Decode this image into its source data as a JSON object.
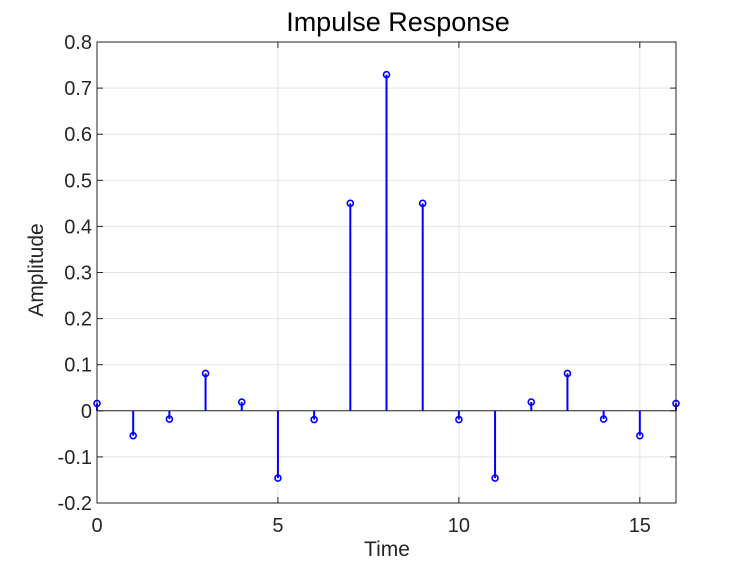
{
  "chart_data": {
    "type": "stem",
    "title": "Impulse Response",
    "xlabel": "Time",
    "ylabel": "Amplitude",
    "xlim": [
      0,
      16
    ],
    "ylim": [
      -0.2,
      0.8
    ],
    "x_ticks": [
      0,
      5,
      10,
      15
    ],
    "y_ticks": [
      -0.2,
      -0.1,
      0,
      0.1,
      0.2,
      0.3,
      0.4,
      0.5,
      0.6,
      0.7,
      0.8
    ],
    "x_tick_labels": [
      "0",
      "5",
      "10",
      "15"
    ],
    "y_tick_labels": [
      "-0.2",
      "-0.1",
      "0",
      "0.1",
      "0.2",
      "0.3",
      "0.4",
      "0.5",
      "0.6",
      "0.7",
      "0.8"
    ],
    "grid": true,
    "legend": null,
    "series": [
      {
        "x": [
          0,
          1,
          2,
          3,
          4,
          5,
          6,
          7,
          8,
          9,
          10,
          11,
          12,
          13,
          14,
          15,
          16
        ],
        "values": [
          0.016,
          -0.054,
          -0.018,
          0.081,
          0.019,
          -0.146,
          -0.019,
          0.45,
          0.729,
          0.45,
          -0.019,
          -0.146,
          0.019,
          0.081,
          -0.018,
          -0.054,
          0.016
        ],
        "color": "#0000ff"
      }
    ]
  }
}
